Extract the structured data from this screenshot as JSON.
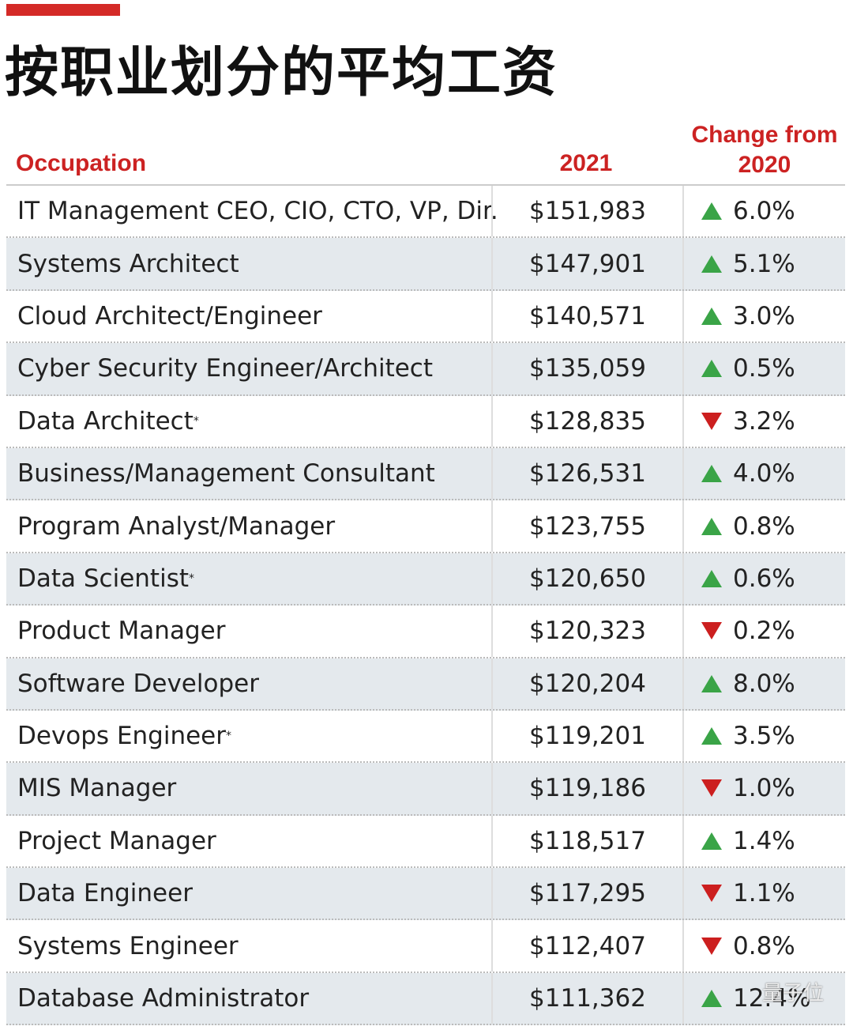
{
  "header": {
    "title": "按职业划分的平均工资"
  },
  "table": {
    "columns": [
      "Occupation",
      "2021",
      "Change from 2020"
    ],
    "rows": [
      {
        "occupation": "IT Management CEO, CIO, CTO, VP, Dir.",
        "salary": "$151,983",
        "change": "6.0%",
        "direction": "up"
      },
      {
        "occupation": "Systems Architect",
        "salary": "$147,901",
        "change": "5.1%",
        "direction": "up"
      },
      {
        "occupation": "Cloud Architect/Engineer",
        "salary": "$140,571",
        "change": "3.0%",
        "direction": "up"
      },
      {
        "occupation": "Cyber Security Engineer/Architect",
        "salary": "$135,059",
        "change": "0.5%",
        "direction": "up"
      },
      {
        "occupation": "Data Architect",
        "note": "*",
        "salary": "$128,835",
        "change": "3.2%",
        "direction": "down"
      },
      {
        "occupation": "Business/Management Consultant",
        "salary": "$126,531",
        "change": "4.0%",
        "direction": "up"
      },
      {
        "occupation": "Program Analyst/Manager",
        "salary": "$123,755",
        "change": "0.8%",
        "direction": "up"
      },
      {
        "occupation": "Data Scientist",
        "note": "*",
        "salary": "$120,650",
        "change": "0.6%",
        "direction": "up"
      },
      {
        "occupation": "Product Manager",
        "salary": "$120,323",
        "change": "0.2%",
        "direction": "down"
      },
      {
        "occupation": "Software Developer",
        "salary": "$120,204",
        "change": "8.0%",
        "direction": "up"
      },
      {
        "occupation": "Devops Engineer",
        "note": "*",
        "salary": "$119,201",
        "change": "3.5%",
        "direction": "up"
      },
      {
        "occupation": "MIS Manager",
        "salary": "$119,186",
        "change": "1.0%",
        "direction": "down"
      },
      {
        "occupation": "Project Manager",
        "salary": "$118,517",
        "change": "1.4%",
        "direction": "up"
      },
      {
        "occupation": "Data Engineer",
        "salary": "$117,295",
        "change": "1.1%",
        "direction": "down"
      },
      {
        "occupation": "Systems Engineer",
        "salary": "$112,407",
        "change": "0.8%",
        "direction": "down"
      },
      {
        "occupation": "Database Administrator",
        "salary": "$111,362",
        "change": "12.4%",
        "direction": "up"
      }
    ]
  },
  "watermark": "量子位"
}
